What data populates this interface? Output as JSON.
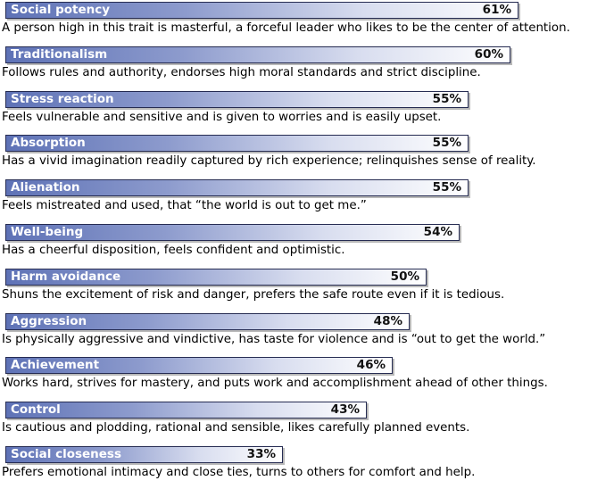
{
  "chart_data": {
    "type": "bar",
    "orientation": "horizontal",
    "xlim": [
      0,
      100
    ],
    "categories": [
      "Social potency",
      "Traditionalism",
      "Stress reaction",
      "Absorption",
      "Alienation",
      "Well-being",
      "Harm avoidance",
      "Aggression",
      "Achievement",
      "Control",
      "Social closeness"
    ],
    "values": [
      61,
      60,
      55,
      55,
      55,
      54,
      50,
      48,
      46,
      43,
      33
    ],
    "value_labels": [
      "61%",
      "60%",
      "55%",
      "55%",
      "55%",
      "54%",
      "50%",
      "48%",
      "46%",
      "43%",
      "33%"
    ],
    "descriptions": [
      "A person high in this trait is masterful, a forceful leader who likes to be the center of attention.",
      "Follows rules and authority, endorses high moral standards and strict discipline.",
      "Feels vulnerable and sensitive and is given to worries and is easily upset.",
      "Has a vivid imagination readily captured by rich experience; relinquishes sense of reality.",
      "Feels mistreated and used, that “the world is out to get me.”",
      "Has a cheerful disposition, feels confident and optimistic.",
      "Shuns the excitement of risk and danger, prefers the safe route even if it is tedious.",
      "Is physically aggressive and vindictive, has taste for violence and is “out to get the world.”",
      "Works hard, strives for mastery, and puts work and accomplishment ahead of other things.",
      "Is cautious and plodding, rational and sensible, likes carefully planned events.",
      "Prefers emotional intimacy and close ties, turns to others for comfort and help."
    ],
    "bar_color_start": "#5e72b6",
    "bar_color_end": "#ffffff",
    "bar_border_color": "#262c52",
    "grid": false,
    "legend": "none"
  }
}
